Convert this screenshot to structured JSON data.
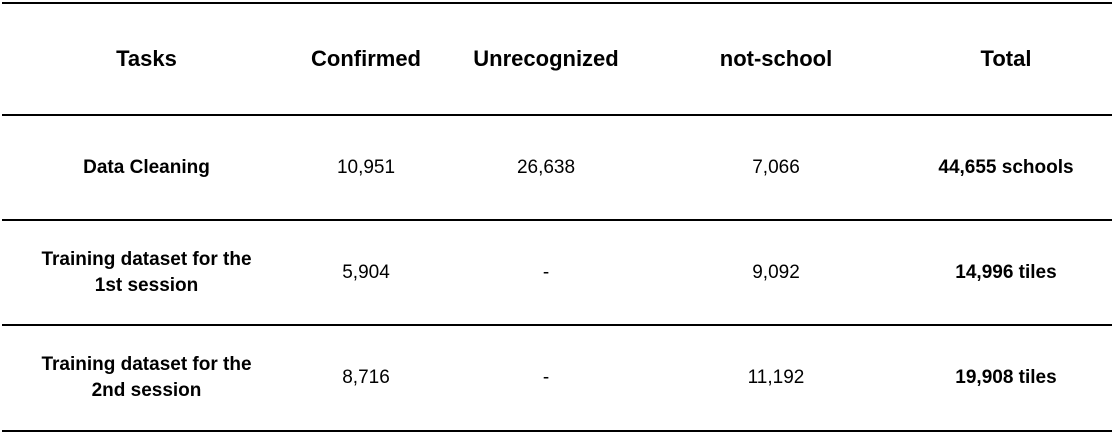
{
  "headers": [
    "Tasks",
    "Confirmed",
    "Unrecognized",
    "not-school",
    "Total"
  ],
  "rows": [
    {
      "task": "Data Cleaning",
      "confirmed": "10,951",
      "unrecognized": "26,638",
      "not_school": "7,066",
      "total": "44,655 schools"
    },
    {
      "task_line1": "Training dataset for the",
      "task_line2": "1st session",
      "confirmed": "5,904",
      "unrecognized": "-",
      "not_school": "9,092",
      "total": "14,996 tiles"
    },
    {
      "task_line1": "Training dataset for the",
      "task_line2": "2nd session",
      "confirmed": "8,716",
      "unrecognized": "-",
      "not_school": "11,192",
      "total": "19,908 tiles"
    }
  ]
}
